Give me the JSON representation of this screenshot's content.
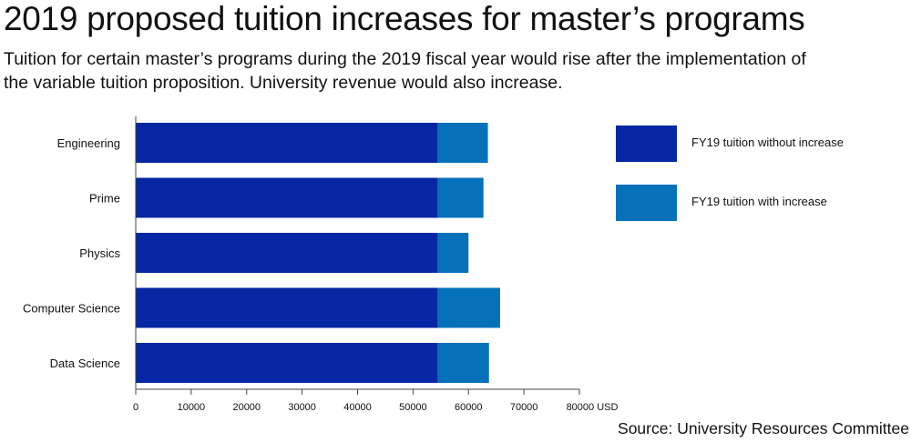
{
  "title": "2019 proposed tuition increases for master’s programs",
  "subtitle": "Tuition for certain master’s programs during the 2019 fiscal year would rise after the implementation of the variable tuition proposition. University revenue would also increase.",
  "source": "Source: University Resources Committee",
  "colors": {
    "without_increase": "#0527a3",
    "increase": "#0571bb"
  },
  "chart_data": {
    "type": "bar",
    "orientation": "horizontal",
    "stacked": true,
    "categories": [
      "Engineering",
      "Prime",
      "Physics",
      "Computer Science",
      "Data Science"
    ],
    "series": [
      {
        "name": "FY19 tuition without increase",
        "values": [
          54500,
          54500,
          54500,
          54500,
          54500
        ]
      },
      {
        "name": "FY19 tuition with increase",
        "values": [
          9000,
          8200,
          5500,
          11200,
          9200
        ]
      }
    ],
    "xlim": [
      0,
      80000
    ],
    "xticks": [
      "0",
      "10000",
      "20000",
      "30000",
      "40000",
      "50000",
      "60000",
      "70000",
      "80000 USD"
    ],
    "xlabel": "",
    "ylabel": "",
    "legend": "right"
  }
}
